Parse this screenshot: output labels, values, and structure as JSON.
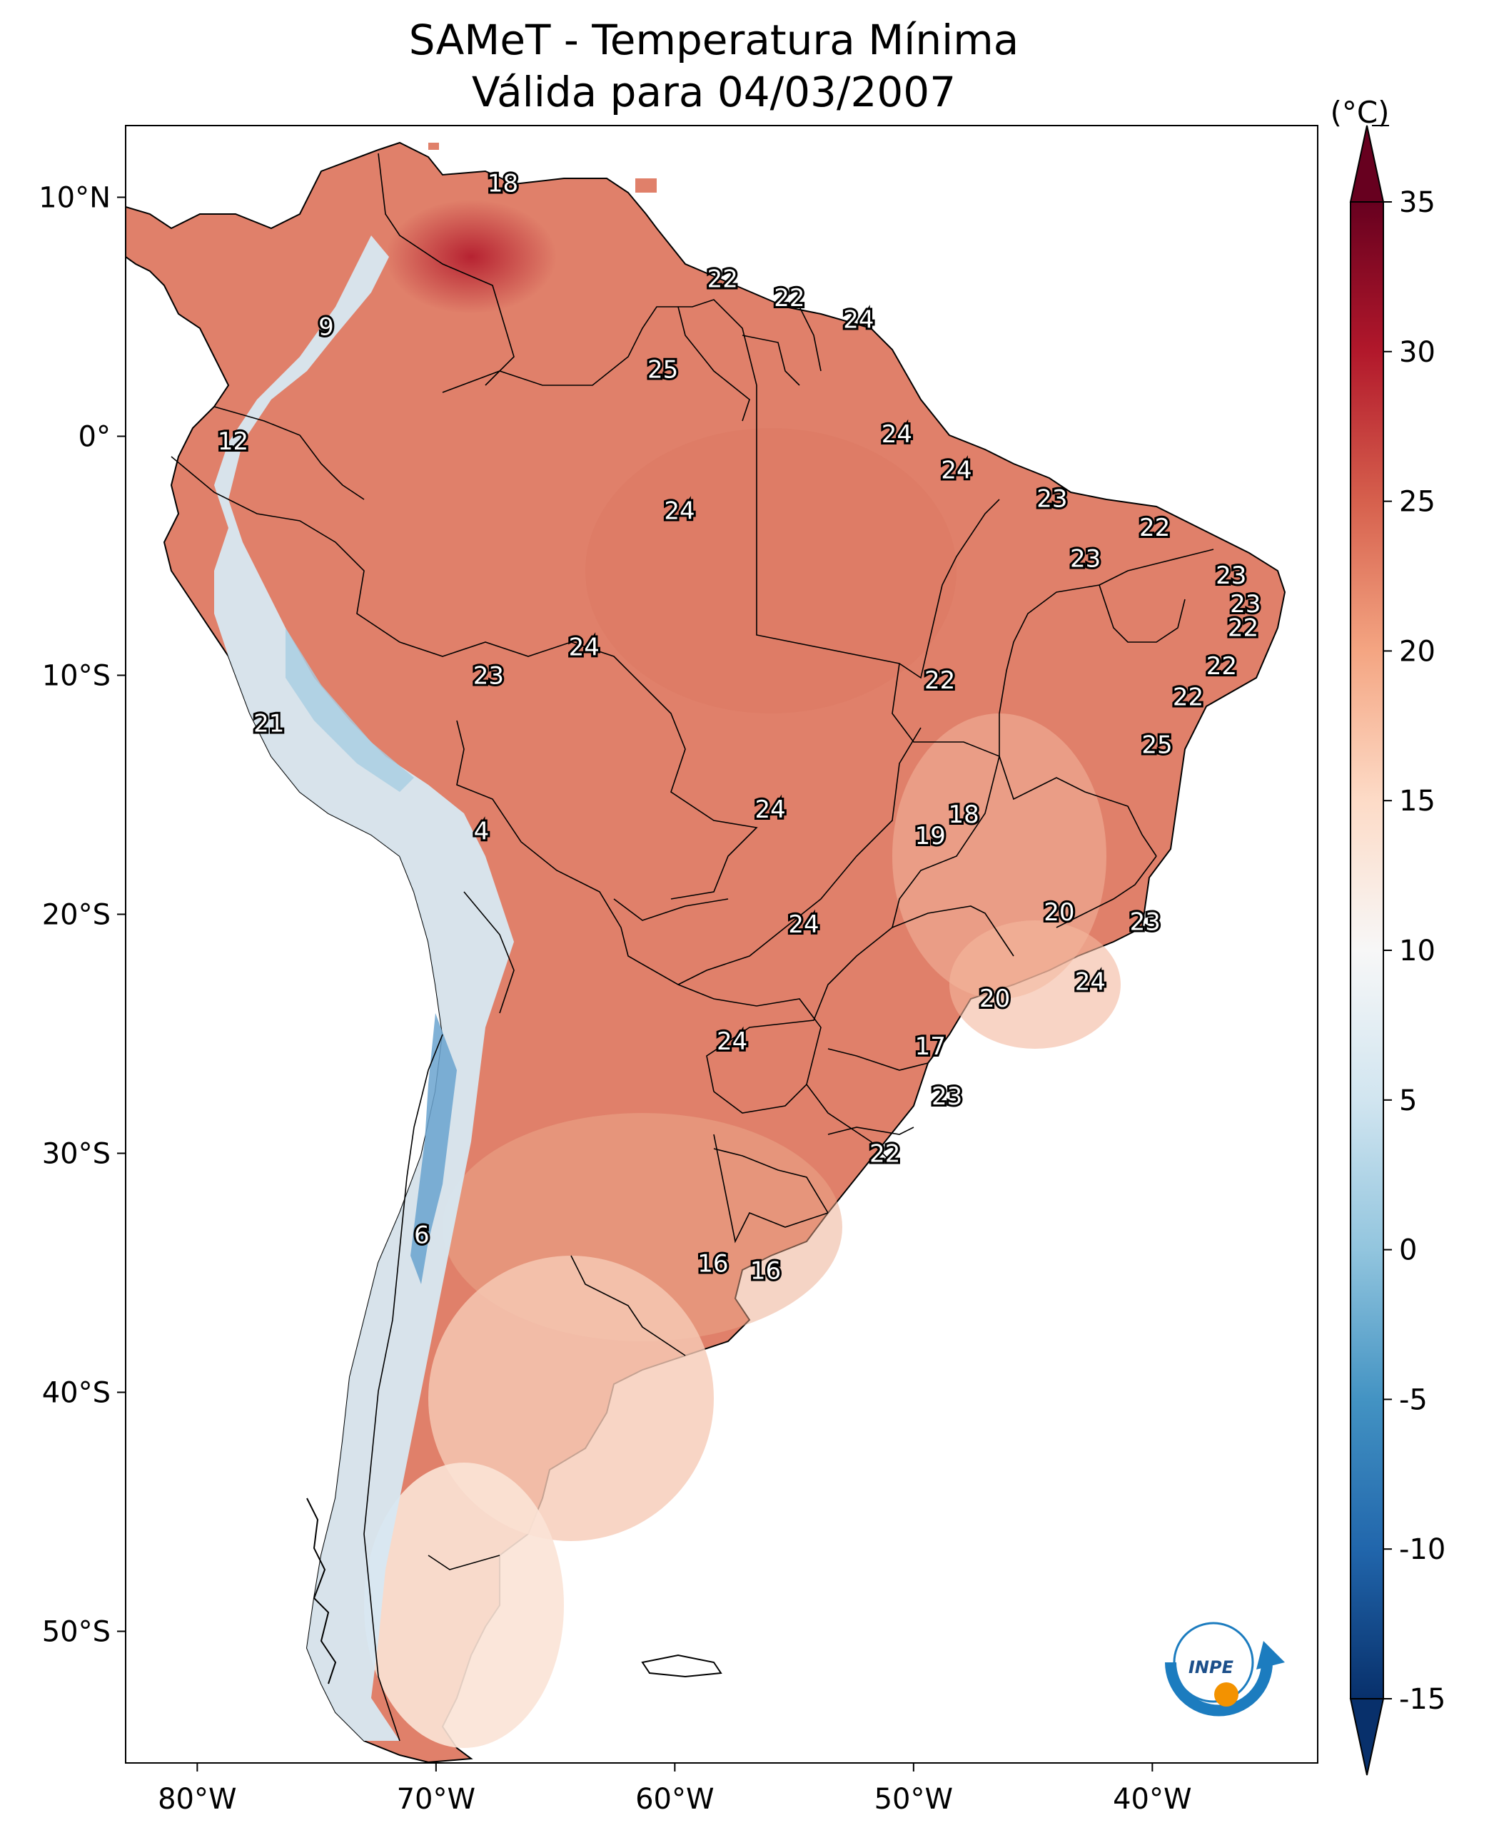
{
  "title": "SAMeT - Temperatura Mínima",
  "subtitle": "Válida para 04/03/2007",
  "colorbar": {
    "unit": "(°C)",
    "min": -15,
    "max": 35,
    "ticks": [
      "35",
      "30",
      "25",
      "20",
      "15",
      "10",
      "5",
      "0",
      "-5",
      "-10",
      "-15"
    ],
    "tick_values": [
      35,
      30,
      25,
      20,
      15,
      10,
      5,
      0,
      -5,
      -10,
      -15
    ],
    "colors": [
      "#08306b",
      "#2166ac",
      "#4393c3",
      "#92c5de",
      "#d1e5f0",
      "#f7f7f7",
      "#fddbc7",
      "#f4a582",
      "#d6604d",
      "#b2182b",
      "#67001f"
    ]
  },
  "axes": {
    "lon_labels": [
      "80°W",
      "70°W",
      "60°W",
      "50°W",
      "40°W"
    ],
    "lon_values": [
      -80,
      -70,
      -60,
      -50,
      -40
    ],
    "lat_labels": [
      "10°N",
      "0°",
      "10°S",
      "20°S",
      "30°S",
      "40°S",
      "50°S"
    ],
    "lat_values": [
      10,
      0,
      -10,
      -20,
      -30,
      -40,
      -50
    ]
  },
  "logo_text": "INPE",
  "station_labels": [
    {
      "value": "18",
      "lon": -67.2,
      "lat": 10.6
    },
    {
      "value": "22",
      "lon": -58.0,
      "lat": 6.6
    },
    {
      "value": "22",
      "lon": -55.2,
      "lat": 5.8
    },
    {
      "value": "24",
      "lon": -52.3,
      "lat": 4.9
    },
    {
      "value": "9",
      "lon": -74.6,
      "lat": 4.6
    },
    {
      "value": "25",
      "lon": -60.5,
      "lat": 2.8
    },
    {
      "value": "12",
      "lon": -78.5,
      "lat": -0.2
    },
    {
      "value": "24",
      "lon": -50.7,
      "lat": 0.1
    },
    {
      "value": "24",
      "lon": -48.2,
      "lat": -1.4
    },
    {
      "value": "23",
      "lon": -44.2,
      "lat": -2.6
    },
    {
      "value": "24",
      "lon": -59.8,
      "lat": -3.1
    },
    {
      "value": "22",
      "lon": -39.9,
      "lat": -3.8
    },
    {
      "value": "23",
      "lon": -42.8,
      "lat": -5.1
    },
    {
      "value": "23",
      "lon": -36.7,
      "lat": -5.8
    },
    {
      "value": "23",
      "lon": -36.1,
      "lat": -7.0
    },
    {
      "value": "22",
      "lon": -36.2,
      "lat": -8.0
    },
    {
      "value": "24",
      "lon": -63.8,
      "lat": -8.8
    },
    {
      "value": "22",
      "lon": -37.1,
      "lat": -9.6
    },
    {
      "value": "23",
      "lon": -67.8,
      "lat": -10.0
    },
    {
      "value": "22",
      "lon": -48.9,
      "lat": -10.2
    },
    {
      "value": "22",
      "lon": -38.5,
      "lat": -10.9
    },
    {
      "value": "21",
      "lon": -77.0,
      "lat": -12.0
    },
    {
      "value": "25",
      "lon": -39.8,
      "lat": -12.9
    },
    {
      "value": "24",
      "lon": -56.0,
      "lat": -15.6
    },
    {
      "value": "18",
      "lon": -47.9,
      "lat": -15.8
    },
    {
      "value": "19",
      "lon": -49.3,
      "lat": -16.7
    },
    {
      "value": "4",
      "lon": -68.1,
      "lat": -16.5
    },
    {
      "value": "20",
      "lon": -43.9,
      "lat": -19.9
    },
    {
      "value": "23",
      "lon": -40.3,
      "lat": -20.3
    },
    {
      "value": "24",
      "lon": -54.6,
      "lat": -20.4
    },
    {
      "value": "24",
      "lon": -42.6,
      "lat": -22.8
    },
    {
      "value": "20",
      "lon": -46.6,
      "lat": -23.5
    },
    {
      "value": "24",
      "lon": -57.6,
      "lat": -25.3
    },
    {
      "value": "17",
      "lon": -49.3,
      "lat": -25.5
    },
    {
      "value": "23",
      "lon": -48.6,
      "lat": -27.6
    },
    {
      "value": "22",
      "lon": -51.2,
      "lat": -30.0
    },
    {
      "value": "6",
      "lon": -70.6,
      "lat": -33.4
    },
    {
      "value": "16",
      "lon": -58.4,
      "lat": -34.6
    },
    {
      "value": "16",
      "lon": -56.2,
      "lat": -34.9
    }
  ]
}
